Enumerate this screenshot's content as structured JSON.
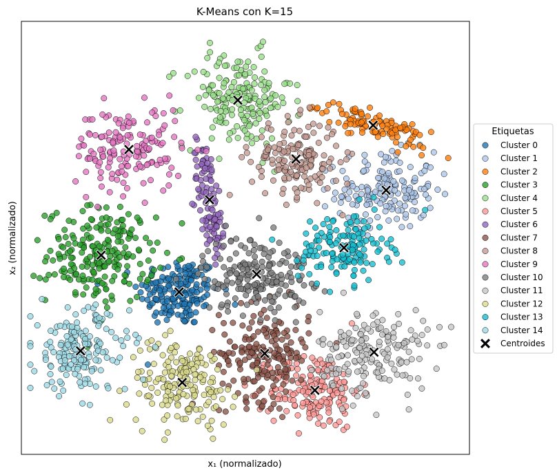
{
  "chart_data": {
    "type": "scatter",
    "title": "K-Means con K=15",
    "xlabel": "x₁ (normalizado)",
    "ylabel": "x₂ (normalizado)",
    "xlim": [
      0,
      1
    ],
    "ylim": [
      0,
      1
    ],
    "grid": false,
    "ticks": "hidden",
    "legend": {
      "title": "Etiquetas",
      "placement": "right, outside plot"
    },
    "series": [
      {
        "name": "Cluster 0",
        "color": "#1f77b4",
        "center": [
          0.352,
          0.375
        ],
        "spread": [
          0.045,
          0.04
        ],
        "count": 180
      },
      {
        "name": "Cluster 1",
        "color": "#aec7e8",
        "center": [
          0.814,
          0.61
        ],
        "spread": [
          0.055,
          0.045
        ],
        "count": 170
      },
      {
        "name": "Cluster 2",
        "color": "#ff7f0e",
        "center": [
          0.785,
          0.76
        ],
        "spread": [
          0.06,
          0.015
        ],
        "count": 110,
        "shape": "elongated"
      },
      {
        "name": "Cluster 3",
        "color": "#2ca02c",
        "center": [
          0.178,
          0.46
        ],
        "spread": [
          0.06,
          0.055
        ],
        "count": 220
      },
      {
        "name": "Cluster 4",
        "color": "#98df8a",
        "center": [
          0.483,
          0.818
        ],
        "spread": [
          0.06,
          0.055
        ],
        "count": 190
      },
      {
        "name": "Cluster 5",
        "color": "#ff9896",
        "center": [
          0.655,
          0.148
        ],
        "spread": [
          0.05,
          0.045
        ],
        "count": 170
      },
      {
        "name": "Cluster 6",
        "color": "#9467bd",
        "center": [
          0.42,
          0.588
        ],
        "spread": [
          0.015,
          0.07
        ],
        "count": 110,
        "shape": "elongated"
      },
      {
        "name": "Cluster 7",
        "color": "#8c564b",
        "center": [
          0.543,
          0.233
        ],
        "spread": [
          0.05,
          0.055
        ],
        "count": 190
      },
      {
        "name": "Cluster 8",
        "color": "#c49c94",
        "center": [
          0.613,
          0.682
        ],
        "spread": [
          0.05,
          0.045
        ],
        "count": 170
      },
      {
        "name": "Cluster 9",
        "color": "#e377c2",
        "center": [
          0.24,
          0.704
        ],
        "spread": [
          0.06,
          0.05
        ],
        "count": 160
      },
      {
        "name": "Cluster 10",
        "color": "#7f7f7f",
        "center": [
          0.525,
          0.416
        ],
        "spread": [
          0.06,
          0.045
        ],
        "count": 190
      },
      {
        "name": "Cluster 11",
        "color": "#c7c7c7",
        "center": [
          0.787,
          0.236
        ],
        "spread": [
          0.06,
          0.05
        ],
        "count": 180
      },
      {
        "name": "Cluster 12",
        "color": "#dbdb8d",
        "center": [
          0.359,
          0.166
        ],
        "spread": [
          0.06,
          0.05
        ],
        "count": 180
      },
      {
        "name": "Cluster 13",
        "color": "#17becf",
        "center": [
          0.72,
          0.477
        ],
        "spread": [
          0.05,
          0.04
        ],
        "count": 150
      },
      {
        "name": "Cluster 14",
        "color": "#9edae5",
        "center": [
          0.132,
          0.239
        ],
        "spread": [
          0.055,
          0.05
        ],
        "count": 180
      }
    ],
    "centroids": {
      "name": "Centroides",
      "color": "#000000",
      "marker": "X",
      "points": [
        [
          0.352,
          0.375
        ],
        [
          0.814,
          0.61
        ],
        [
          0.785,
          0.76
        ],
        [
          0.178,
          0.46
        ],
        [
          0.483,
          0.818
        ],
        [
          0.655,
          0.148
        ],
        [
          0.42,
          0.588
        ],
        [
          0.543,
          0.233
        ],
        [
          0.613,
          0.682
        ],
        [
          0.24,
          0.704
        ],
        [
          0.525,
          0.416
        ],
        [
          0.787,
          0.236
        ],
        [
          0.359,
          0.166
        ],
        [
          0.72,
          0.477
        ],
        [
          0.132,
          0.239
        ]
      ]
    }
  }
}
